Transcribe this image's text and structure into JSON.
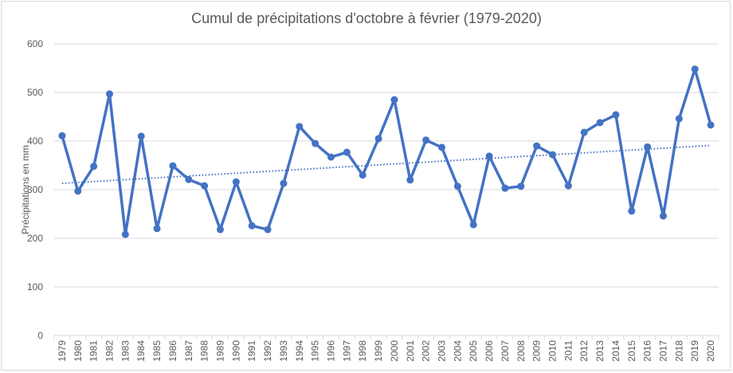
{
  "chart_data": {
    "type": "line",
    "title": "Cumul de précipitations d'octobre à février (1979-2020)",
    "xlabel": "",
    "ylabel": "Précipitations en mm",
    "ylim": [
      0,
      600
    ],
    "yticks": [
      0,
      100,
      200,
      300,
      400,
      500,
      600
    ],
    "grid": true,
    "legend": "none",
    "categories": [
      "1979",
      "1980",
      "1981",
      "1982",
      "1983",
      "1984",
      "1985",
      "1986",
      "1987",
      "1988",
      "1989",
      "1990",
      "1991",
      "1992",
      "1993",
      "1994",
      "1995",
      "1996",
      "1997",
      "1998",
      "1999",
      "2000",
      "2001",
      "2002",
      "2003",
      "2004",
      "2005",
      "2006",
      "2007",
      "2008",
      "2009",
      "2010",
      "2011",
      "2012",
      "2013",
      "2014",
      "2015",
      "2016",
      "2017",
      "2018",
      "2019",
      "2020"
    ],
    "series": [
      {
        "name": "Précipitations",
        "color": "#4472c4",
        "values": [
          411,
          297,
          348,
          497,
          208,
          410,
          220,
          349,
          321,
          308,
          218,
          316,
          226,
          218,
          313,
          430,
          395,
          367,
          377,
          330,
          405,
          485,
          320,
          402,
          387,
          307,
          228,
          369,
          303,
          307,
          390,
          372,
          308,
          418,
          438,
          454,
          256,
          388,
          246,
          446,
          548,
          433
        ]
      }
    ],
    "trendline": {
      "type": "linear",
      "style": "dotted",
      "color": "#4472c4",
      "start": 313,
      "end": 391
    }
  }
}
